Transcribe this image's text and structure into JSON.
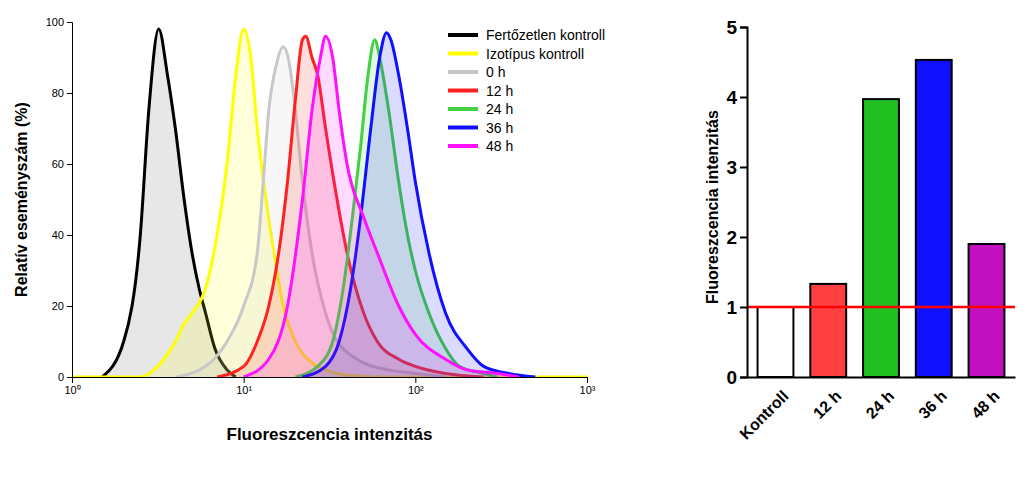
{
  "chart_data": [
    {
      "type": "line",
      "x_label": "Fluoreszcencia intenzitás",
      "y_label": "Relatív eseményszám (%)",
      "log": "x",
      "xlim": [
        1,
        1000
      ],
      "xticks": [
        {
          "value": 1,
          "label": "10⁰"
        },
        {
          "value": 10,
          "label": "10¹"
        },
        {
          "value": 100,
          "label": "10²"
        },
        {
          "value": 1000,
          "label": "10³"
        }
      ],
      "ylim": [
        0,
        100
      ],
      "yticks": [
        0,
        20,
        40,
        60,
        80,
        100
      ],
      "legend": "upper right",
      "series": [
        {
          "name": "Fertőzetlen kontroll",
          "color": "#000000",
          "x": [
            1.5,
            2,
            2.5,
            2.8,
            3.2,
            3.6,
            4,
            4.5,
            5,
            5.5,
            6,
            6.8,
            8,
            9
          ],
          "values": [
            0,
            10,
            40,
            75,
            98,
            85,
            70,
            50,
            35,
            25,
            18,
            8,
            2,
            0
          ]
        },
        {
          "name": "Izotípus kontroll",
          "color": "#ffff00",
          "x": [
            1,
            2.5,
            3,
            4,
            4.5,
            5,
            6,
            7,
            8,
            9,
            10,
            11,
            12,
            13.5,
            15,
            17,
            20,
            25,
            30,
            40,
            60,
            1000
          ],
          "values": [
            0,
            0,
            2,
            10,
            15,
            18,
            25,
            40,
            60,
            85,
            98,
            90,
            70,
            50,
            35,
            20,
            10,
            4,
            2,
            0.5,
            0,
            0
          ]
        },
        {
          "name": "0 h",
          "color": "#c8c8c8",
          "x": [
            4,
            6,
            8,
            10,
            12,
            13,
            14,
            15.5,
            17,
            18.5,
            20,
            22,
            25,
            30,
            35,
            40,
            50,
            70,
            100,
            150
          ],
          "values": [
            0,
            3,
            10,
            20,
            35,
            55,
            75,
            88,
            93,
            88,
            75,
            55,
            35,
            18,
            10,
            7,
            4,
            2,
            1,
            0
          ]
        },
        {
          "name": "12 h",
          "color": "#ff2020",
          "x": [
            7,
            10,
            12,
            14,
            16,
            18,
            20,
            22,
            23,
            25,
            27,
            30,
            35,
            40,
            50,
            60,
            80,
            100,
            150,
            250
          ],
          "values": [
            0,
            3,
            10,
            20,
            35,
            55,
            78,
            95,
            96,
            90,
            85,
            70,
            50,
            35,
            18,
            10,
            5,
            3,
            1,
            0
          ]
        },
        {
          "name": "24 h",
          "color": "#44d044",
          "x": [
            20,
            27,
            33,
            38,
            43,
            48,
            53,
            58,
            62,
            70,
            80,
            90,
            100,
            120,
            150,
            180,
            250,
            300
          ],
          "values": [
            0,
            3,
            10,
            25,
            45,
            65,
            85,
            95,
            90,
            75,
            55,
            40,
            30,
            18,
            8,
            3,
            1,
            0
          ]
        },
        {
          "name": "36 h",
          "color": "#1010ff",
          "x": [
            22,
            30,
            36,
            42,
            48,
            55,
            62,
            68,
            72,
            80,
            90,
            100,
            120,
            150,
            200,
            250,
            350,
            500
          ],
          "values": [
            0,
            3,
            10,
            25,
            45,
            70,
            90,
            97,
            95,
            85,
            70,
            55,
            35,
            18,
            8,
            3,
            1,
            0
          ]
        },
        {
          "name": "48 h",
          "color": "#ff10ff",
          "x": [
            10,
            14,
            18,
            22,
            25,
            28,
            30,
            33,
            36,
            40,
            50,
            60,
            80,
            100,
            150,
            200,
            300,
            400
          ],
          "values": [
            0,
            5,
            20,
            50,
            75,
            90,
            96,
            90,
            75,
            60,
            45,
            35,
            20,
            12,
            5,
            2,
            1,
            0
          ]
        }
      ]
    },
    {
      "type": "bar",
      "y_label": "Fluoreszcencia intenzitás",
      "categories": [
        "Kontroll",
        "12 h",
        "24 h",
        "36 h",
        "48 h"
      ],
      "values": [
        1,
        1.33,
        3.97,
        4.53,
        1.9
      ],
      "colors": [
        "#ffffff",
        "#ff4040",
        "#20c020",
        "#1010ff",
        "#c010c0"
      ],
      "ylim": [
        0,
        5
      ],
      "yticks": [
        0,
        1,
        2,
        3,
        4,
        5
      ],
      "reference_line": 1
    }
  ]
}
